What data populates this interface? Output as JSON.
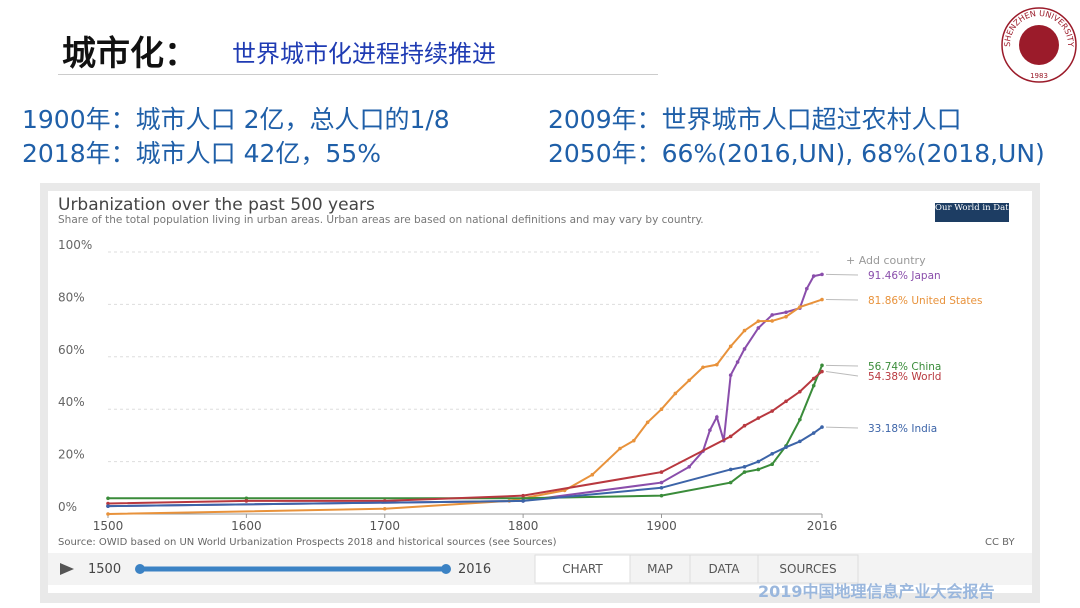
{
  "slide": {
    "title": "城市化：",
    "subtitle": "世界城市化进程持续推进",
    "facts": [
      "1900年：城市人口  2亿，总人口的1/8",
      "2018年：城市人口 42亿，55%",
      "2009年：世界城市人口超过农村人口",
      "2050年：66%(2016,UN), 68%(2018,UN)"
    ],
    "logo": {
      "name": "SHENZHEN UNIVERSITY",
      "year": "1983"
    },
    "watermark": "2019中国地理信息产业大会报告"
  },
  "owid": {
    "brand": "Our World in Data",
    "add_country": "+ Add country",
    "source": "Source: OWID based on UN World Urbanization Prospects 2018 and historical sources (see Sources)",
    "license": "CC BY",
    "slider_start": "1500",
    "slider_end": "2016",
    "tabs": [
      "CHART",
      "MAP",
      "DATA",
      "SOURCES"
    ]
  },
  "chart_data": {
    "type": "line",
    "title": "Urbanization over the past 500 years",
    "subtitle": "Share of the total population living in urban areas. Urban areas are based on national definitions and may vary by country.",
    "xlim": [
      1500,
      2016
    ],
    "xticks": [
      1500,
      1600,
      1700,
      1800,
      1900,
      2016
    ],
    "ylim": [
      0,
      100
    ],
    "yticks": [
      {
        "value": 0,
        "label": "0%"
      },
      {
        "value": 20,
        "label": "20%"
      },
      {
        "value": 40,
        "label": "40%"
      },
      {
        "value": 60,
        "label": "60%"
      },
      {
        "value": 80,
        "label": "80%"
      },
      {
        "value": 100,
        "label": "100%"
      }
    ],
    "grid": true,
    "series": [
      {
        "name": "Japan",
        "color": "#8a4eab",
        "x": [
          1500,
          1800,
          1900,
          1920,
          1930,
          1935,
          1940,
          1945,
          1950,
          1955,
          1960,
          1970,
          1980,
          1990,
          2000,
          2005,
          2010,
          2016
        ],
        "values": [
          3,
          5,
          12,
          18,
          24,
          32,
          37,
          28,
          53,
          58,
          63,
          71,
          76,
          77,
          78.6,
          86,
          90.8,
          91.46
        ],
        "value_labels": [
          null,
          null,
          null,
          null,
          null,
          null,
          null,
          null,
          null,
          null,
          null,
          null,
          null,
          null,
          null,
          null,
          null,
          "91.46% Japan"
        ]
      },
      {
        "name": "United States",
        "color": "#e8923b",
        "x": [
          1500,
          1700,
          1790,
          1800,
          1830,
          1850,
          1870,
          1880,
          1890,
          1900,
          1910,
          1920,
          1930,
          1940,
          1950,
          1960,
          1970,
          1980,
          1990,
          2000,
          2016
        ],
        "values": [
          0,
          2,
          5,
          6,
          9,
          15,
          25,
          28,
          35,
          40,
          46,
          51,
          56,
          57,
          64,
          70,
          73.6,
          73.7,
          75.3,
          79,
          81.86
        ],
        "value_labels": [
          null,
          null,
          null,
          null,
          null,
          null,
          null,
          null,
          null,
          null,
          null,
          null,
          null,
          null,
          null,
          null,
          null,
          null,
          null,
          null,
          "81.86% United States"
        ]
      },
      {
        "name": "China",
        "color": "#3a8c3a",
        "x": [
          1500,
          1600,
          1800,
          1900,
          1950,
          1960,
          1970,
          1980,
          1990,
          2000,
          2010,
          2016
        ],
        "values": [
          6,
          6,
          6,
          7,
          12,
          16,
          17,
          19,
          26,
          36,
          49,
          56.74
        ],
        "value_labels": [
          null,
          null,
          null,
          null,
          null,
          null,
          null,
          null,
          null,
          null,
          null,
          "56.74% China"
        ]
      },
      {
        "name": "World",
        "color": "#b8383f",
        "x": [
          1500,
          1600,
          1700,
          1800,
          1900,
          1950,
          1960,
          1970,
          1980,
          1990,
          2000,
          2010,
          2016
        ],
        "values": [
          4,
          5,
          5,
          7,
          16,
          29.6,
          33.7,
          36.6,
          39.3,
          43,
          46.7,
          51.7,
          54.38
        ],
        "value_labels": [
          null,
          null,
          null,
          null,
          null,
          null,
          null,
          null,
          null,
          null,
          null,
          null,
          "54.38% World"
        ]
      },
      {
        "name": "India",
        "color": "#3c64a8",
        "x": [
          1500,
          1800,
          1900,
          1950,
          1960,
          1970,
          1980,
          1990,
          2000,
          2010,
          2016
        ],
        "values": [
          3,
          5,
          10,
          17,
          18,
          20,
          23,
          25.5,
          27.7,
          30.9,
          33.18
        ],
        "value_labels": [
          null,
          null,
          null,
          null,
          null,
          null,
          null,
          null,
          null,
          null,
          "33.18% India"
        ]
      }
    ]
  }
}
